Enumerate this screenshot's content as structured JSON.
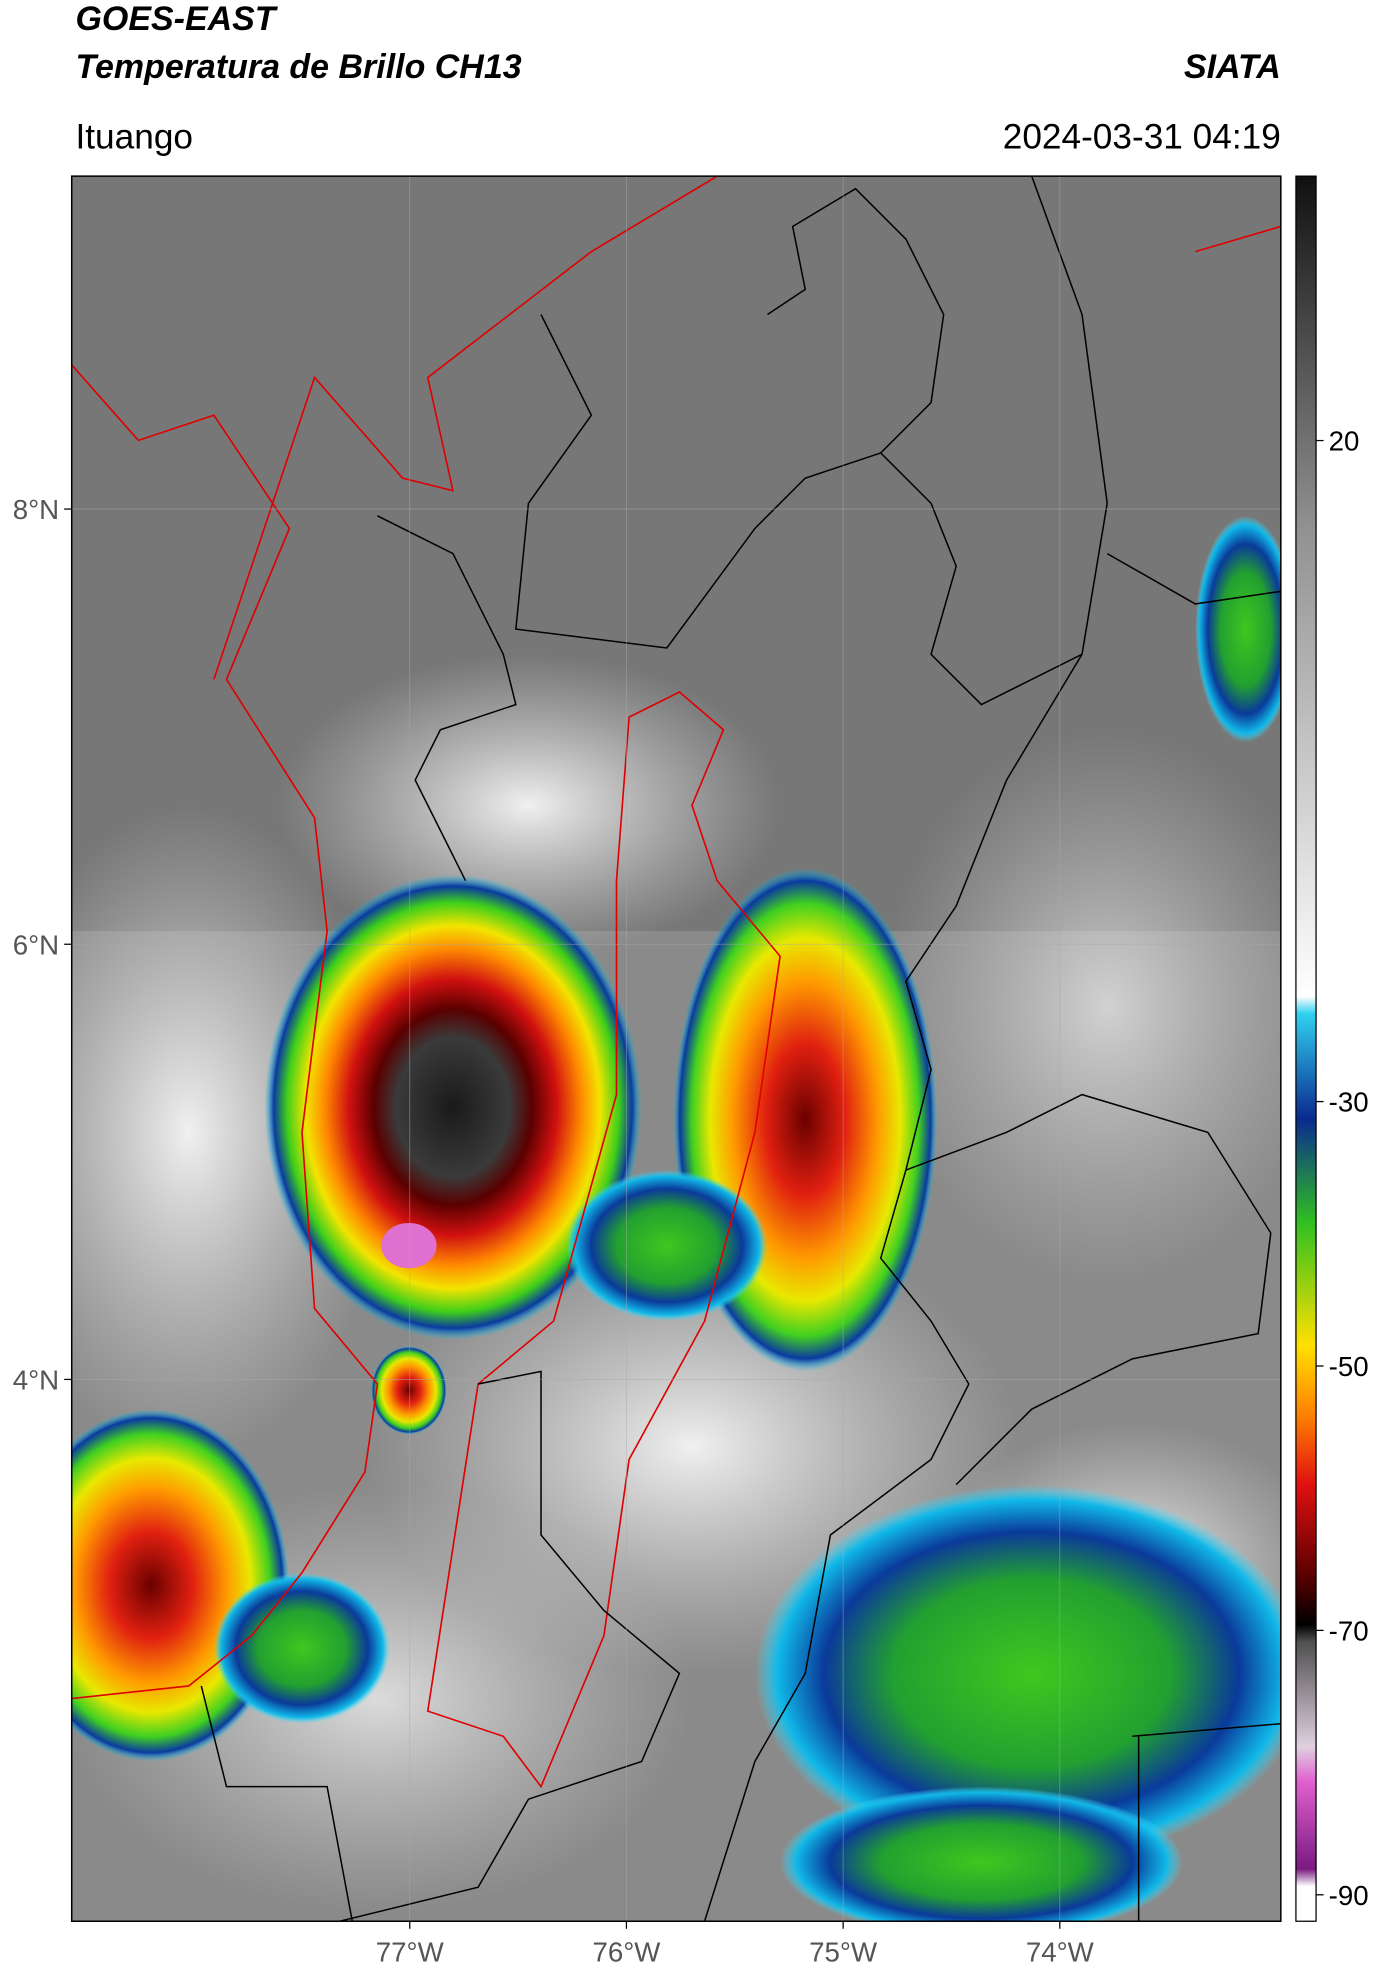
{
  "header": {
    "title_line1": "GOES-EAST",
    "title_line2": "Temperatura de Brillo CH13",
    "agency": "SIATA",
    "location": "Ituango",
    "timestamp": "2024-03-31 04:19"
  },
  "map": {
    "xlim": [
      -78.56,
      -72.98
    ],
    "ylim": [
      1.51,
      9.53
    ],
    "xticks": [
      {
        "value": -77,
        "label": "77°W"
      },
      {
        "value": -76,
        "label": "76°W"
      },
      {
        "value": -75,
        "label": "75°W"
      },
      {
        "value": -74,
        "label": "74°W"
      }
    ],
    "yticks": [
      {
        "value": 8,
        "label": "8°N"
      },
      {
        "value": 6,
        "label": "6°N"
      },
      {
        "value": 4,
        "label": "4°N"
      }
    ]
  },
  "colorbar": {
    "lim": [
      -92,
      40
    ],
    "ticks": [
      20,
      -30,
      -50,
      -70,
      -90
    ]
  }
}
